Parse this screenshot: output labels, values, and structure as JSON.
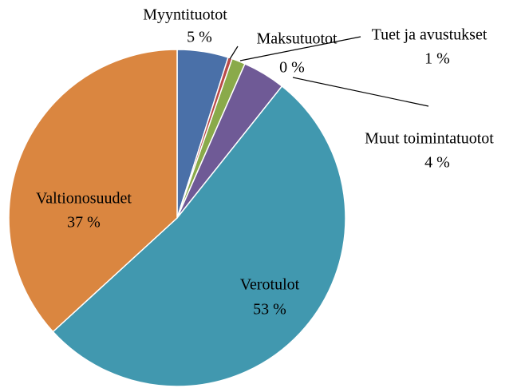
{
  "chart_data": {
    "type": "pie",
    "categories": [
      "Myyntituotot",
      "Maksutuotot",
      "Tuet ja avustukset",
      "Muut toimintatuotot",
      "Verotulot",
      "Valtionosuudet"
    ],
    "values": [
      4.9,
      0.4,
      1.3,
      4.1,
      52.5,
      36.8
    ],
    "value_labels": [
      "5 %",
      "0 %",
      "1 %",
      "4 %",
      "53 %",
      "37 %"
    ],
    "colors": [
      "#4a70a8",
      "#b94a48",
      "#8aaa4a",
      "#6f5a96",
      "#4198af",
      "#da8640"
    ]
  }
}
